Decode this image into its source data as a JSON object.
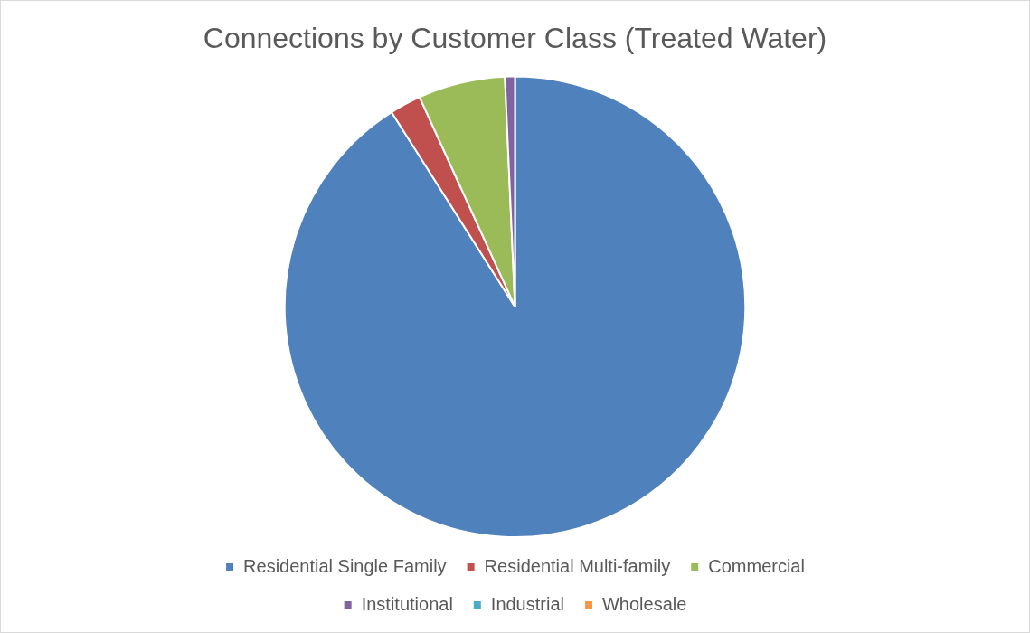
{
  "chart_data": {
    "type": "pie",
    "title": "Connections by Customer Class (Treated Water)",
    "categories": [
      "Residential Single Family",
      "Residential Multi-family",
      "Commercial",
      "Institutional",
      "Industrial",
      "Wholesale"
    ],
    "values": [
      91,
      2.2,
      6.1,
      0.7,
      0,
      0
    ],
    "colors": [
      "#4f81bd",
      "#c0504d",
      "#9bbb59",
      "#8064a2",
      "#4bacc6",
      "#f79646"
    ],
    "legend": "bottom"
  }
}
